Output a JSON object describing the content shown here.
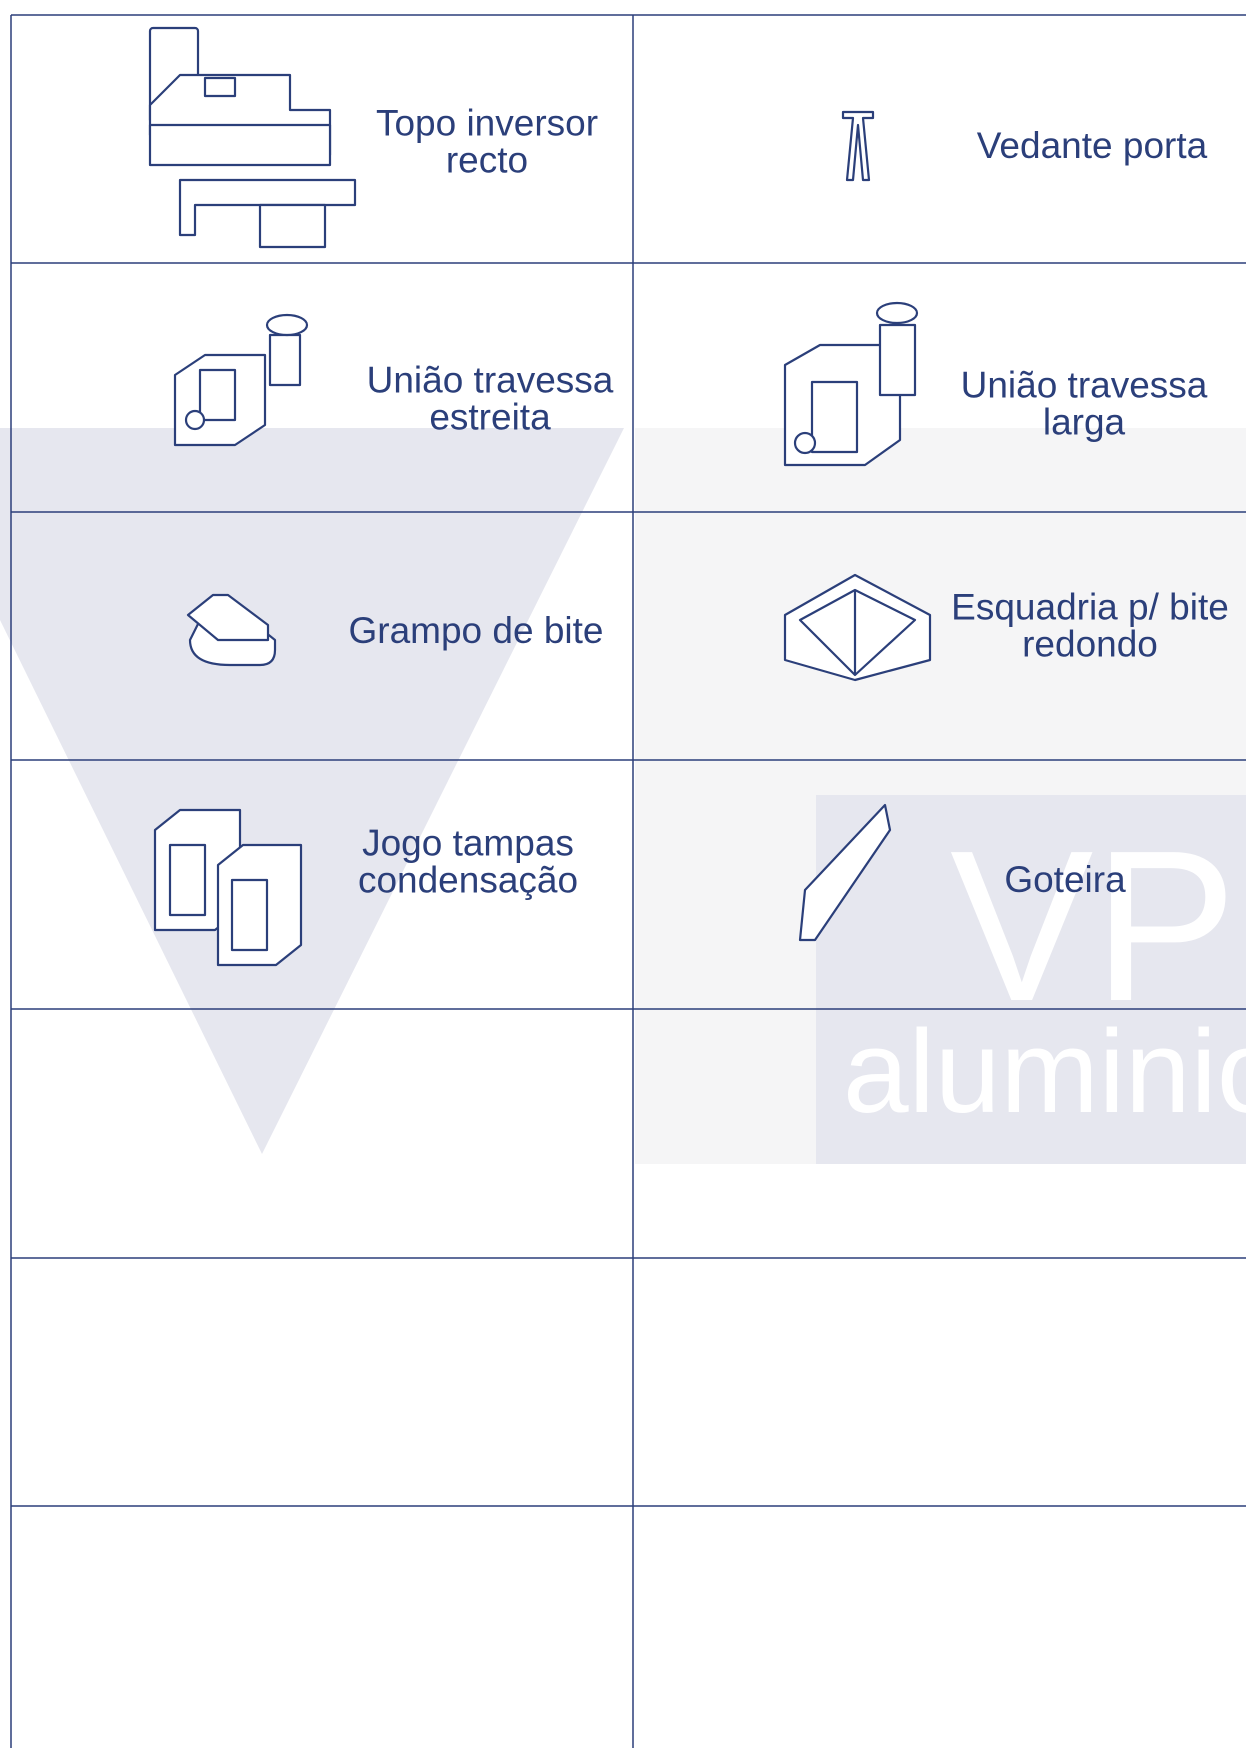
{
  "watermark": {
    "brand": "VP",
    "word": "aluminio"
  },
  "items": [
    {
      "lines": [
        "Topo inversor",
        "recto"
      ]
    },
    {
      "lines": [
        "Vedante porta"
      ]
    },
    {
      "lines": [
        "União travessa",
        "estreita"
      ]
    },
    {
      "lines": [
        "União travessa",
        "larga"
      ]
    },
    {
      "lines": [
        "Grampo de bite"
      ]
    },
    {
      "lines": [
        "Esquadria p/ bite",
        "redondo"
      ]
    },
    {
      "lines": [
        "Jogo tampas",
        "condensação"
      ]
    },
    {
      "lines": [
        "Goteira"
      ]
    }
  ]
}
